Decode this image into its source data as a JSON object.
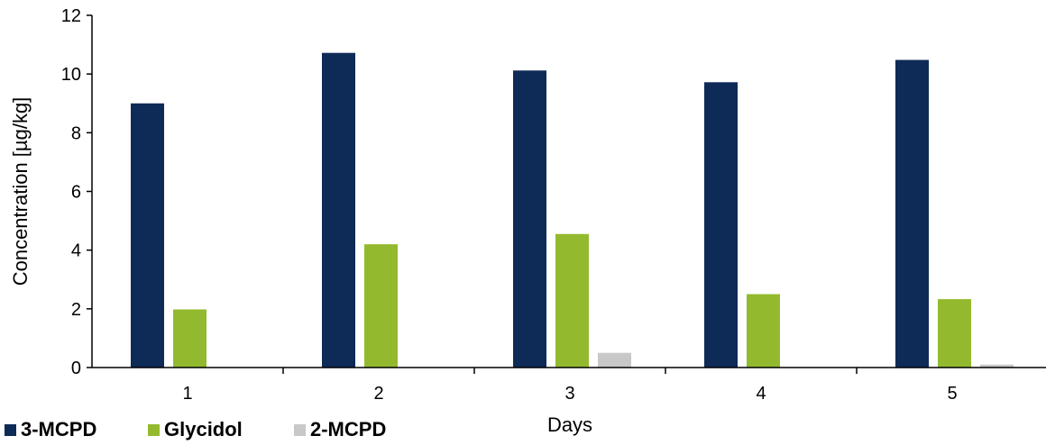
{
  "chart_data": {
    "type": "bar",
    "title": "",
    "xlabel": "Days",
    "ylabel": "Concentration [µg/kg]",
    "categories": [
      "1",
      "2",
      "3",
      "4",
      "5"
    ],
    "series": [
      {
        "name": "3-MCPD",
        "color": "#0e2a57",
        "values": [
          9.0,
          10.72,
          10.12,
          9.72,
          10.48
        ]
      },
      {
        "name": "Glycidol",
        "color": "#93ba2e",
        "values": [
          1.98,
          4.2,
          4.55,
          2.5,
          2.33
        ]
      },
      {
        "name": "2-MCPD",
        "color": "#c8c8c8",
        "values": [
          0.0,
          0.0,
          0.5,
          0.0,
          0.1
        ]
      }
    ],
    "ylim": [
      0,
      12
    ],
    "yticks": [
      "0",
      "2",
      "4",
      "6",
      "8",
      "10",
      "12"
    ],
    "grid": false,
    "legend_position": "bottom-left"
  }
}
